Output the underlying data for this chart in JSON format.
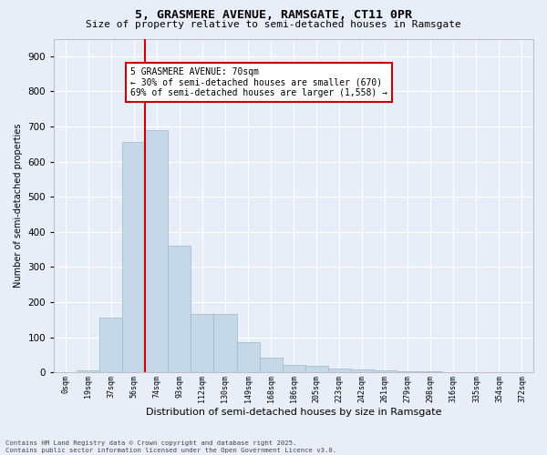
{
  "title1": "5, GRASMERE AVENUE, RAMSGATE, CT11 0PR",
  "title2": "Size of property relative to semi-detached houses in Ramsgate",
  "xlabel": "Distribution of semi-detached houses by size in Ramsgate",
  "ylabel": "Number of semi-detached properties",
  "bin_labels": [
    "0sqm",
    "19sqm",
    "37sqm",
    "56sqm",
    "74sqm",
    "93sqm",
    "112sqm",
    "130sqm",
    "149sqm",
    "168sqm",
    "186sqm",
    "205sqm",
    "223sqm",
    "242sqm",
    "261sqm",
    "279sqm",
    "298sqm",
    "316sqm",
    "335sqm",
    "354sqm",
    "372sqm"
  ],
  "bar_heights": [
    0,
    5,
    155,
    655,
    690,
    360,
    165,
    165,
    87,
    42,
    20,
    18,
    10,
    8,
    5,
    3,
    2,
    0,
    0,
    0,
    0
  ],
  "bar_color": "#c5d8e8",
  "bar_edge_color": "#9ab8cc",
  "vline_color": "#cc0000",
  "vline_x_index": 3,
  "annotation_text": "5 GRASMERE AVENUE: 70sqm\n← 30% of semi-detached houses are smaller (670)\n69% of semi-detached houses are larger (1,558) →",
  "annotation_box_color": "#ffffff",
  "annotation_box_edge": "#cc0000",
  "ylim_max": 950,
  "yticks": [
    0,
    100,
    200,
    300,
    400,
    500,
    600,
    700,
    800,
    900
  ],
  "background_color": "#e8eef8",
  "grid_color": "#ffffff",
  "footer_line1": "Contains HM Land Registry data © Crown copyright and database right 2025.",
  "footer_line2": "Contains public sector information licensed under the Open Government Licence v3.0."
}
